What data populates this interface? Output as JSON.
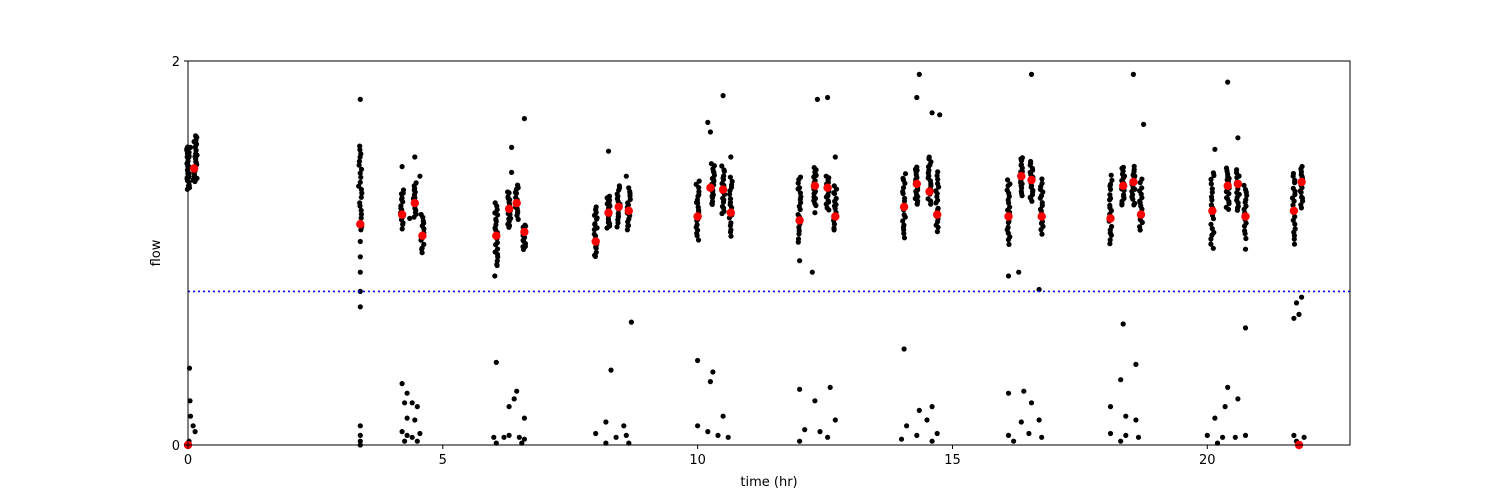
{
  "chart_data": {
    "type": "scatter",
    "title": "",
    "xlabel": "time (hr)",
    "ylabel": "flow",
    "xlim": [
      0,
      22.8
    ],
    "ylim": [
      0,
      2
    ],
    "xticks": [
      0,
      5,
      10,
      15,
      20
    ],
    "yticks": [
      0,
      2
    ],
    "xtick_labels": [
      "0",
      "5",
      "10",
      "15",
      "20"
    ],
    "ytick_labels": [
      "0",
      "2"
    ],
    "grid": false,
    "threshold": {
      "y": 0.8,
      "style": "dotted",
      "color": "#0000ff"
    },
    "colors": {
      "raw": "#000000",
      "mean": "#ff0000",
      "threshold": "#0000ff"
    },
    "outlier_points": [
      [
        0.02,
        1.5
      ],
      [
        0.05,
        1.55
      ],
      [
        0.1,
        1.38
      ],
      [
        0.12,
        1.58
      ],
      [
        0.15,
        1.61
      ],
      [
        0.03,
        0.4
      ],
      [
        0.04,
        0.23
      ],
      [
        0.05,
        0.15
      ],
      [
        0.1,
        0.1
      ],
      [
        0.14,
        0.07
      ],
      [
        0.02,
        0.02
      ],
      [
        3.38,
        1.8
      ],
      [
        3.38,
        1.06
      ],
      [
        3.38,
        0.98
      ],
      [
        3.38,
        0.9
      ],
      [
        3.38,
        0.8
      ],
      [
        3.38,
        0.72
      ],
      [
        3.38,
        0.1
      ],
      [
        3.38,
        0.05
      ],
      [
        3.38,
        0.02
      ],
      [
        3.38,
        0.0
      ],
      [
        4.2,
        1.45
      ],
      [
        4.35,
        1.18
      ],
      [
        4.45,
        1.5
      ],
      [
        4.55,
        1.4
      ],
      [
        4.2,
        0.32
      ],
      [
        4.3,
        0.27
      ],
      [
        4.25,
        0.22
      ],
      [
        4.4,
        0.22
      ],
      [
        4.5,
        0.2
      ],
      [
        4.3,
        0.14
      ],
      [
        4.45,
        0.13
      ],
      [
        4.2,
        0.07
      ],
      [
        4.3,
        0.05
      ],
      [
        4.4,
        0.04
      ],
      [
        4.55,
        0.06
      ],
      [
        4.25,
        0.02
      ],
      [
        4.5,
        0.02
      ],
      [
        6.02,
        0.88
      ],
      [
        6.35,
        1.42
      ],
      [
        6.35,
        1.55
      ],
      [
        6.6,
        1.7
      ],
      [
        6.05,
        0.43
      ],
      [
        6.45,
        0.28
      ],
      [
        6.4,
        0.24
      ],
      [
        6.3,
        0.2
      ],
      [
        6.6,
        0.14
      ],
      [
        6.0,
        0.04
      ],
      [
        6.2,
        0.04
      ],
      [
        6.3,
        0.05
      ],
      [
        6.5,
        0.04
      ],
      [
        6.6,
        0.03
      ],
      [
        6.05,
        0.01
      ],
      [
        6.55,
        0.01
      ],
      [
        8.25,
        1.53
      ],
      [
        8.6,
        1.4
      ],
      [
        8.7,
        0.64
      ],
      [
        8.3,
        0.39
      ],
      [
        8.2,
        0.12
      ],
      [
        8.55,
        0.1
      ],
      [
        8.0,
        0.06
      ],
      [
        8.4,
        0.04
      ],
      [
        8.6,
        0.05
      ],
      [
        8.2,
        0.01
      ],
      [
        8.65,
        0.01
      ],
      [
        10.0,
        1.26
      ],
      [
        10.2,
        1.68
      ],
      [
        10.25,
        1.63
      ],
      [
        10.5,
        1.82
      ],
      [
        10.65,
        1.5
      ],
      [
        10.0,
        0.44
      ],
      [
        10.3,
        0.38
      ],
      [
        10.25,
        0.33
      ],
      [
        10.5,
        0.15
      ],
      [
        10.0,
        0.1
      ],
      [
        10.2,
        0.07
      ],
      [
        10.4,
        0.05
      ],
      [
        10.6,
        0.04
      ],
      [
        12.0,
        0.96
      ],
      [
        12.25,
        0.9
      ],
      [
        12.35,
        1.8
      ],
      [
        12.55,
        1.81
      ],
      [
        12.7,
        1.5
      ],
      [
        12.3,
        1.21
      ],
      [
        12.0,
        0.29
      ],
      [
        12.6,
        0.3
      ],
      [
        12.3,
        0.23
      ],
      [
        12.7,
        0.13
      ],
      [
        12.1,
        0.08
      ],
      [
        12.4,
        0.07
      ],
      [
        12.55,
        0.04
      ],
      [
        12.0,
        0.02
      ],
      [
        14.05,
        0.5
      ],
      [
        14.3,
        1.81
      ],
      [
        14.35,
        1.93
      ],
      [
        14.6,
        1.73
      ],
      [
        14.75,
        1.72
      ],
      [
        14.35,
        0.18
      ],
      [
        14.6,
        0.2
      ],
      [
        14.5,
        0.13
      ],
      [
        14.1,
        0.1
      ],
      [
        14.3,
        0.05
      ],
      [
        14.7,
        0.06
      ],
      [
        14.0,
        0.03
      ],
      [
        14.6,
        0.02
      ],
      [
        16.1,
        0.88
      ],
      [
        16.3,
        0.9
      ],
      [
        16.55,
        1.93
      ],
      [
        16.7,
        0.81
      ],
      [
        16.1,
        0.27
      ],
      [
        16.4,
        0.28
      ],
      [
        16.55,
        0.22
      ],
      [
        16.7,
        0.13
      ],
      [
        16.35,
        0.12
      ],
      [
        16.1,
        0.05
      ],
      [
        16.5,
        0.06
      ],
      [
        16.75,
        0.04
      ],
      [
        16.2,
        0.02
      ],
      [
        18.35,
        0.63
      ],
      [
        18.55,
        1.93
      ],
      [
        18.75,
        1.67
      ],
      [
        18.6,
        0.42
      ],
      [
        18.3,
        0.34
      ],
      [
        18.1,
        0.2
      ],
      [
        18.4,
        0.15
      ],
      [
        18.6,
        0.13
      ],
      [
        18.1,
        0.06
      ],
      [
        18.4,
        0.05
      ],
      [
        18.65,
        0.04
      ],
      [
        18.3,
        0.02
      ],
      [
        20.15,
        1.54
      ],
      [
        20.4,
        1.89
      ],
      [
        20.6,
        1.6
      ],
      [
        20.75,
        1.02
      ],
      [
        20.75,
        0.61
      ],
      [
        20.4,
        0.3
      ],
      [
        20.6,
        0.24
      ],
      [
        20.35,
        0.2
      ],
      [
        20.15,
        0.14
      ],
      [
        20.0,
        0.05
      ],
      [
        20.3,
        0.04
      ],
      [
        20.55,
        0.04
      ],
      [
        20.75,
        0.05
      ],
      [
        20.2,
        0.01
      ],
      [
        21.7,
        0.66
      ],
      [
        21.75,
        0.74
      ],
      [
        21.85,
        0.77
      ],
      [
        21.8,
        0.68
      ],
      [
        21.7,
        0.05
      ],
      [
        21.9,
        0.04
      ],
      [
        21.75,
        0.02
      ]
    ],
    "clusters": [
      {
        "x": 0.0,
        "y_min": 1.33,
        "y_max": 1.55,
        "n": 26
      },
      {
        "x": 0.15,
        "y_min": 1.37,
        "y_max": 1.6,
        "n": 24
      },
      {
        "x": 3.38,
        "y_min": 1.12,
        "y_max": 1.56,
        "n": 22
      },
      {
        "x": 4.2,
        "y_min": 1.13,
        "y_max": 1.33,
        "n": 16
      },
      {
        "x": 4.45,
        "y_min": 1.19,
        "y_max": 1.36,
        "n": 16
      },
      {
        "x": 4.6,
        "y_min": 1.0,
        "y_max": 1.2,
        "n": 14
      },
      {
        "x": 6.05,
        "y_min": 0.93,
        "y_max": 1.26,
        "n": 22
      },
      {
        "x": 6.3,
        "y_min": 1.13,
        "y_max": 1.32,
        "n": 18
      },
      {
        "x": 6.45,
        "y_min": 1.18,
        "y_max": 1.35,
        "n": 16
      },
      {
        "x": 6.6,
        "y_min": 1.02,
        "y_max": 1.15,
        "n": 14
      },
      {
        "x": 8.0,
        "y_min": 0.98,
        "y_max": 1.24,
        "n": 20
      },
      {
        "x": 8.25,
        "y_min": 1.13,
        "y_max": 1.3,
        "n": 18
      },
      {
        "x": 8.45,
        "y_min": 1.14,
        "y_max": 1.35,
        "n": 16
      },
      {
        "x": 8.65,
        "y_min": 1.12,
        "y_max": 1.34,
        "n": 16
      },
      {
        "x": 10.0,
        "y_min": 1.07,
        "y_max": 1.37,
        "n": 20
      },
      {
        "x": 10.3,
        "y_min": 1.25,
        "y_max": 1.46,
        "n": 20
      },
      {
        "x": 10.5,
        "y_min": 1.2,
        "y_max": 1.45,
        "n": 18
      },
      {
        "x": 10.65,
        "y_min": 1.09,
        "y_max": 1.39,
        "n": 18
      },
      {
        "x": 12.0,
        "y_min": 1.06,
        "y_max": 1.4,
        "n": 20
      },
      {
        "x": 12.3,
        "y_min": 1.25,
        "y_max": 1.45,
        "n": 18
      },
      {
        "x": 12.55,
        "y_min": 1.23,
        "y_max": 1.4,
        "n": 16
      },
      {
        "x": 12.7,
        "y_min": 1.12,
        "y_max": 1.35,
        "n": 16
      },
      {
        "x": 14.05,
        "y_min": 1.08,
        "y_max": 1.41,
        "n": 20
      },
      {
        "x": 14.3,
        "y_min": 1.25,
        "y_max": 1.45,
        "n": 20
      },
      {
        "x": 14.55,
        "y_min": 1.26,
        "y_max": 1.5,
        "n": 18
      },
      {
        "x": 14.7,
        "y_min": 1.11,
        "y_max": 1.42,
        "n": 18
      },
      {
        "x": 16.1,
        "y_min": 1.05,
        "y_max": 1.38,
        "n": 20
      },
      {
        "x": 16.35,
        "y_min": 1.3,
        "y_max": 1.5,
        "n": 18
      },
      {
        "x": 16.55,
        "y_min": 1.27,
        "y_max": 1.48,
        "n": 18
      },
      {
        "x": 16.75,
        "y_min": 1.1,
        "y_max": 1.38,
        "n": 18
      },
      {
        "x": 18.1,
        "y_min": 1.05,
        "y_max": 1.4,
        "n": 20
      },
      {
        "x": 18.35,
        "y_min": 1.25,
        "y_max": 1.45,
        "n": 18
      },
      {
        "x": 18.55,
        "y_min": 1.25,
        "y_max": 1.45,
        "n": 16
      },
      {
        "x": 18.7,
        "y_min": 1.12,
        "y_max": 1.38,
        "n": 16
      },
      {
        "x": 20.1,
        "y_min": 1.03,
        "y_max": 1.42,
        "n": 20
      },
      {
        "x": 20.4,
        "y_min": 1.23,
        "y_max": 1.44,
        "n": 18
      },
      {
        "x": 20.6,
        "y_min": 1.22,
        "y_max": 1.43,
        "n": 16
      },
      {
        "x": 20.75,
        "y_min": 1.08,
        "y_max": 1.35,
        "n": 16
      },
      {
        "x": 21.7,
        "y_min": 1.05,
        "y_max": 1.42,
        "n": 20
      },
      {
        "x": 21.85,
        "y_min": 1.24,
        "y_max": 1.45,
        "n": 16
      }
    ],
    "series": [
      {
        "x": [
          0.12,
          3.38,
          4.2,
          4.45,
          4.6,
          6.05,
          6.3,
          6.45,
          6.6,
          8.0,
          8.25,
          8.45,
          8.65,
          10.0,
          10.25,
          10.5,
          10.65,
          12.0,
          12.3,
          12.55,
          12.7,
          14.05,
          14.3,
          14.55,
          14.7,
          16.1,
          16.35,
          16.55,
          16.75,
          18.1,
          18.35,
          18.55,
          18.7,
          20.1,
          20.4,
          20.6,
          20.75,
          21.7,
          21.85,
          0.0,
          21.8
        ],
        "y": [
          1.44,
          1.15,
          1.2,
          1.26,
          1.09,
          1.09,
          1.23,
          1.26,
          1.11,
          1.06,
          1.21,
          1.24,
          1.22,
          1.19,
          1.34,
          1.33,
          1.21,
          1.17,
          1.35,
          1.34,
          1.19,
          1.24,
          1.36,
          1.32,
          1.2,
          1.19,
          1.4,
          1.38,
          1.19,
          1.18,
          1.35,
          1.37,
          1.2,
          1.22,
          1.35,
          1.36,
          1.19,
          1.22,
          1.37,
          0.0,
          0.0
        ]
      }
    ]
  }
}
